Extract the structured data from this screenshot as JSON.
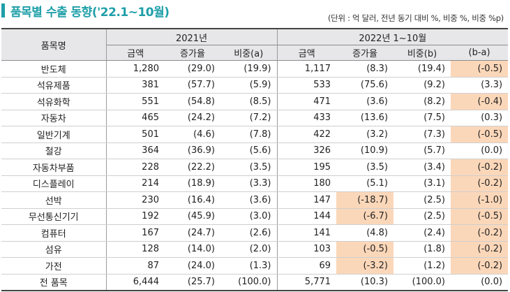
{
  "title": "품목별 수출 동향('22.1~10월)",
  "unit_note": "(단위 : 억 달러, 전년 동기 대비 %, 비중 %, 비중 %p)",
  "header": {
    "item": "품목명",
    "year_a": "2021년",
    "year_b": "2022년 1~10월",
    "cols": [
      "금액",
      "증가율",
      "비중(a)",
      "금액",
      "증가율",
      "비중(b)",
      "(b-a)"
    ]
  },
  "colors": {
    "accent": "#1e9fa8",
    "highlight": "#fbd7b9",
    "header_bg": "#e7e7e9"
  },
  "rows": [
    {
      "name": "반도체",
      "v": [
        "1,280",
        "(29.0)",
        "(19.9)",
        "1,117",
        "(8.3)",
        "(19.4)",
        "(-0.5)"
      ],
      "hl": [
        false,
        false,
        false,
        false,
        false,
        false,
        true
      ]
    },
    {
      "name": "석유제품",
      "v": [
        "381",
        "(57.7)",
        "(5.9)",
        "533",
        "(75.6)",
        "(9.2)",
        "(3.3)"
      ],
      "hl": [
        false,
        false,
        false,
        false,
        false,
        false,
        false
      ]
    },
    {
      "name": "석유화학",
      "v": [
        "551",
        "(54.8)",
        "(8.5)",
        "471",
        "(3.6)",
        "(8.2)",
        "(-0.4)"
      ],
      "hl": [
        false,
        false,
        false,
        false,
        false,
        false,
        true
      ]
    },
    {
      "name": "자동차",
      "v": [
        "465",
        "(24.2)",
        "(7.2)",
        "433",
        "(13.6)",
        "(7.5)",
        "(0.3)"
      ],
      "hl": [
        false,
        false,
        false,
        false,
        false,
        false,
        false
      ]
    },
    {
      "name": "일반기계",
      "v": [
        "501",
        "(4.6)",
        "(7.8)",
        "422",
        "(3.2)",
        "(7.3)",
        "(-0.5)"
      ],
      "hl": [
        false,
        false,
        false,
        false,
        false,
        false,
        true
      ]
    },
    {
      "name": "철강",
      "v": [
        "364",
        "(36.9)",
        "(5.6)",
        "326",
        "(10.9)",
        "(5.7)",
        "(0.0)"
      ],
      "hl": [
        false,
        false,
        false,
        false,
        false,
        false,
        false
      ]
    },
    {
      "name": "자동차부품",
      "v": [
        "228",
        "(22.2)",
        "(3.5)",
        "195",
        "(3.5)",
        "(3.4)",
        "(-0.2)"
      ],
      "hl": [
        false,
        false,
        false,
        false,
        false,
        false,
        true
      ]
    },
    {
      "name": "디스플레이",
      "v": [
        "214",
        "(18.9)",
        "(3.3)",
        "180",
        "(5.1)",
        "(3.1)",
        "(-0.2)"
      ],
      "hl": [
        false,
        false,
        false,
        false,
        false,
        false,
        true
      ]
    },
    {
      "name": "선박",
      "v": [
        "230",
        "(16.4)",
        "(3.6)",
        "147",
        "(-18.7)",
        "(2.5)",
        "(-1.0)"
      ],
      "hl": [
        false,
        false,
        false,
        false,
        true,
        false,
        true
      ]
    },
    {
      "name": "무선통신기기",
      "v": [
        "192",
        "(45.9)",
        "(3.0)",
        "144",
        "(-6.7)",
        "(2.5)",
        "(-0.5)"
      ],
      "hl": [
        false,
        false,
        false,
        false,
        true,
        false,
        true
      ]
    },
    {
      "name": "컴퓨터",
      "v": [
        "167",
        "(24.7)",
        "(2.6)",
        "141",
        "(4.8)",
        "(2.4)",
        "(-0.2)"
      ],
      "hl": [
        false,
        false,
        false,
        false,
        false,
        false,
        true
      ]
    },
    {
      "name": "섬유",
      "v": [
        "128",
        "(14.0)",
        "(2.0)",
        "103",
        "(-0.5)",
        "(1.8)",
        "(-0.2)"
      ],
      "hl": [
        false,
        false,
        false,
        false,
        true,
        false,
        true
      ]
    },
    {
      "name": "가전",
      "v": [
        "87",
        "(24.0)",
        "(1.3)",
        "69",
        "(-3.2)",
        "(1.2)",
        "(-0.2)"
      ],
      "hl": [
        false,
        false,
        false,
        false,
        true,
        false,
        true
      ]
    },
    {
      "name": "전 품목",
      "v": [
        "6,444",
        "(25.7)",
        "(100.0)",
        "5,771",
        "(10.3)",
        "(100.0)",
        "(0.0)"
      ],
      "hl": [
        false,
        false,
        false,
        false,
        false,
        false,
        false
      ]
    }
  ]
}
